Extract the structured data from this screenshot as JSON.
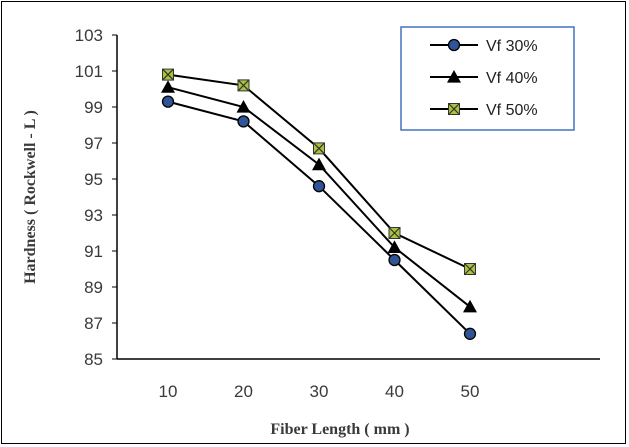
{
  "chart_data": {
    "type": "line",
    "title": "",
    "xlabel": "Fiber Length ( mm )",
    "ylabel": "Hardness ( Rockwell - L )",
    "categories": [
      "10",
      "20",
      "30",
      "40",
      "50"
    ],
    "x": [
      10,
      20,
      30,
      40,
      50
    ],
    "ylim": [
      85,
      103
    ],
    "yticks": [
      "85",
      "87",
      "89",
      "91",
      "93",
      "95",
      "97",
      "99",
      "101",
      "103"
    ],
    "grid": false,
    "legend_position": "top-right",
    "series": [
      {
        "name": "Vf 30%",
        "marker": "circle",
        "values": [
          99.3,
          98.2,
          94.6,
          90.5,
          86.4
        ]
      },
      {
        "name": "Vf 40%",
        "marker": "triangle",
        "values": [
          100.1,
          99.0,
          95.8,
          91.2,
          87.9
        ]
      },
      {
        "name": "Vf 50%",
        "marker": "square-x",
        "values": [
          100.8,
          100.2,
          96.7,
          92.0,
          90.0
        ]
      }
    ],
    "colors": {
      "line": "#000000",
      "circle_fill": "#2f5597",
      "square_fill": "#a9c23f",
      "legend_border": "#4472c4"
    }
  }
}
